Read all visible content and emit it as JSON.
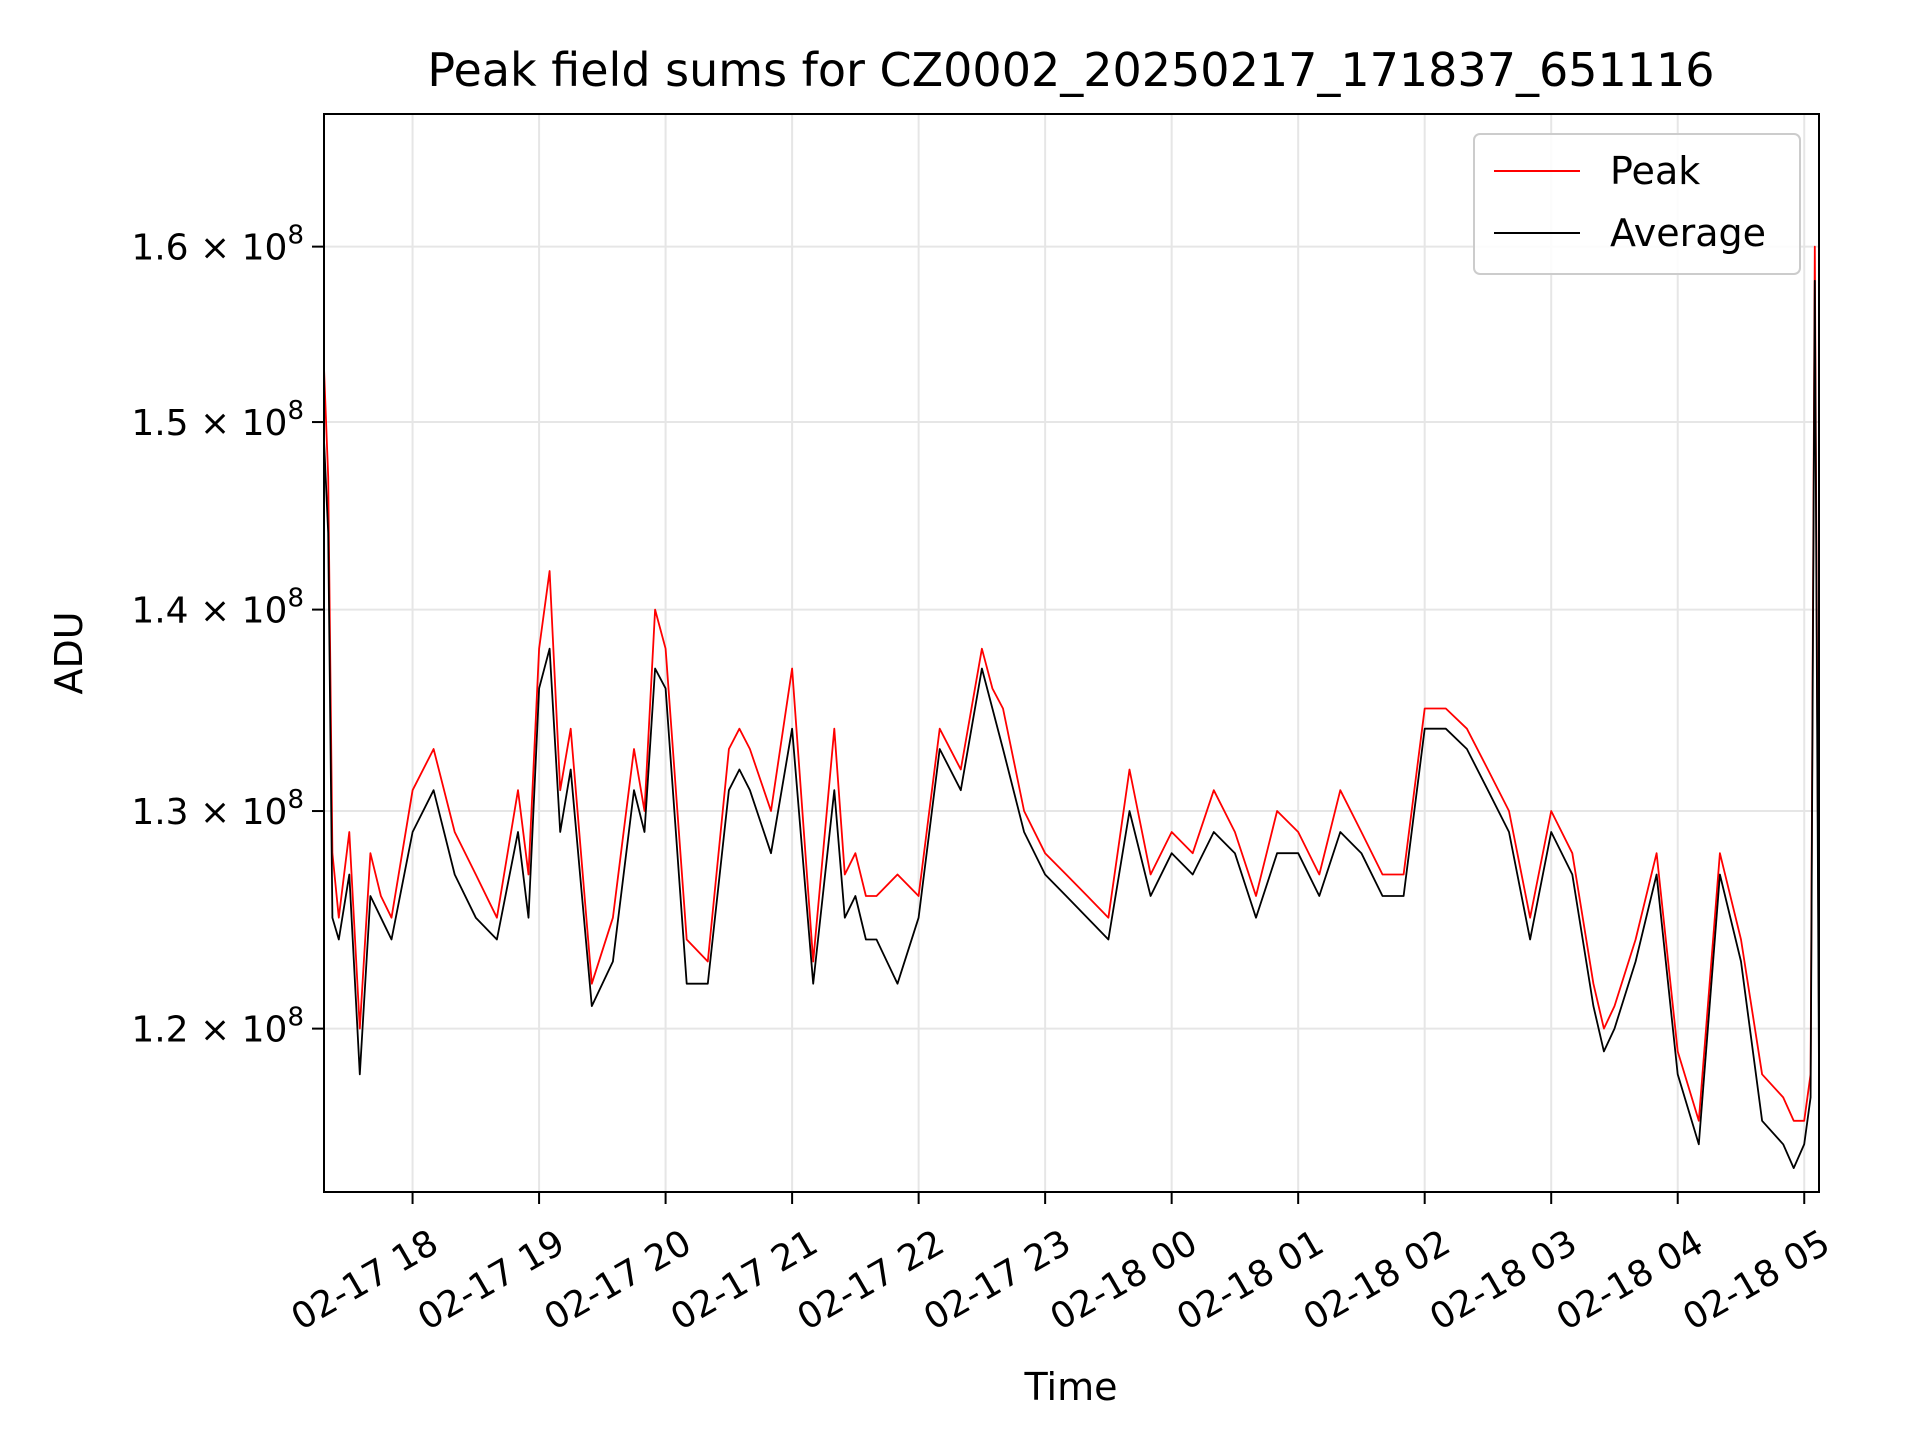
{
  "chart_data": {
    "type": "line",
    "title": "Peak field sums for CZ0002_20250217_171837_651116",
    "xlabel": "Time",
    "ylabel": "ADU",
    "y_scale": "log",
    "ylim": [
      113000000.0,
      168000000.0
    ],
    "xlim": [
      "2025-02-17 17:18",
      "2025-02-18 05:07"
    ],
    "grid": true,
    "legend_position": "top-right",
    "x_ticks": [
      "02-17 18",
      "02-17 19",
      "02-17 20",
      "02-17 21",
      "02-17 22",
      "02-17 23",
      "02-18 00",
      "02-18 01",
      "02-18 02",
      "02-18 03",
      "02-18 04",
      "02-18 05"
    ],
    "y_ticks": [
      {
        "value": 120000000.0,
        "mantissa": "1.2",
        "base": "10",
        "exp": "8"
      },
      {
        "value": 130000000.0,
        "mantissa": "1.3",
        "base": "10",
        "exp": "8"
      },
      {
        "value": 140000000.0,
        "mantissa": "1.4",
        "base": "10",
        "exp": "8"
      },
      {
        "value": 150000000.0,
        "mantissa": "1.5",
        "base": "10",
        "exp": "8"
      },
      {
        "value": 160000000.0,
        "mantissa": "1.6",
        "base": "10",
        "exp": "8"
      }
    ],
    "colors": {
      "peak": "#ff0000",
      "average": "#000000",
      "grid": "#e6e6e6",
      "legend_border": "#cccccc"
    },
    "series": [
      {
        "name": "Peak",
        "x": [
          "2025-02-17 17:18",
          "2025-02-17 17:20",
          "2025-02-17 17:22",
          "2025-02-17 17:25",
          "2025-02-17 17:30",
          "2025-02-17 17:35",
          "2025-02-17 17:40",
          "2025-02-17 17:45",
          "2025-02-17 17:50",
          "2025-02-17 18:00",
          "2025-02-17 18:10",
          "2025-02-17 18:20",
          "2025-02-17 18:30",
          "2025-02-17 18:40",
          "2025-02-17 18:50",
          "2025-02-17 18:55",
          "2025-02-17 19:00",
          "2025-02-17 19:05",
          "2025-02-17 19:10",
          "2025-02-17 19:15",
          "2025-02-17 19:25",
          "2025-02-17 19:35",
          "2025-02-17 19:45",
          "2025-02-17 19:50",
          "2025-02-17 19:55",
          "2025-02-17 20:00",
          "2025-02-17 20:10",
          "2025-02-17 20:20",
          "2025-02-17 20:30",
          "2025-02-17 20:35",
          "2025-02-17 20:40",
          "2025-02-17 20:50",
          "2025-02-17 21:00",
          "2025-02-17 21:10",
          "2025-02-17 21:20",
          "2025-02-17 21:25",
          "2025-02-17 21:30",
          "2025-02-17 21:35",
          "2025-02-17 21:40",
          "2025-02-17 21:50",
          "2025-02-17 22:00",
          "2025-02-17 22:10",
          "2025-02-17 22:20",
          "2025-02-17 22:30",
          "2025-02-17 22:35",
          "2025-02-17 22:40",
          "2025-02-17 22:50",
          "2025-02-17 23:00",
          "2025-02-17 23:10",
          "2025-02-17 23:20",
          "2025-02-17 23:30",
          "2025-02-17 23:40",
          "2025-02-17 23:50",
          "2025-02-18 00:00",
          "2025-02-18 00:10",
          "2025-02-18 00:20",
          "2025-02-18 00:30",
          "2025-02-18 00:40",
          "2025-02-18 00:50",
          "2025-02-18 01:00",
          "2025-02-18 01:10",
          "2025-02-18 01:20",
          "2025-02-18 01:30",
          "2025-02-18 01:40",
          "2025-02-18 01:50",
          "2025-02-18 02:00",
          "2025-02-18 02:10",
          "2025-02-18 02:20",
          "2025-02-18 02:30",
          "2025-02-18 02:40",
          "2025-02-18 02:50",
          "2025-02-18 03:00",
          "2025-02-18 03:10",
          "2025-02-18 03:20",
          "2025-02-18 03:25",
          "2025-02-18 03:30",
          "2025-02-18 03:40",
          "2025-02-18 03:50",
          "2025-02-18 04:00",
          "2025-02-18 04:10",
          "2025-02-18 04:20",
          "2025-02-18 04:30",
          "2025-02-18 04:40",
          "2025-02-18 04:50",
          "2025-02-18 04:55",
          "2025-02-18 05:00",
          "2025-02-18 05:03",
          "2025-02-18 05:05",
          "2025-02-18 05:07"
        ],
        "y": [
          153000000.0,
          147000000.0,
          128000000.0,
          125000000.0,
          129000000.0,
          120000000.0,
          128000000.0,
          126000000.0,
          125000000.0,
          131000000.0,
          133000000.0,
          129000000.0,
          127000000.0,
          125000000.0,
          131000000.0,
          127000000.0,
          138000000.0,
          142000000.0,
          131000000.0,
          134000000.0,
          122000000.0,
          125000000.0,
          133000000.0,
          130000000.0,
          140000000.0,
          138000000.0,
          124000000.0,
          123000000.0,
          133000000.0,
          134000000.0,
          133000000.0,
          130000000.0,
          137000000.0,
          123000000.0,
          134000000.0,
          127000000.0,
          128000000.0,
          126000000.0,
          126000000.0,
          127000000.0,
          126000000.0,
          134000000.0,
          132000000.0,
          138000000.0,
          136000000.0,
          135000000.0,
          130000000.0,
          128000000.0,
          127000000.0,
          126000000.0,
          125000000.0,
          132000000.0,
          127000000.0,
          129000000.0,
          128000000.0,
          131000000.0,
          129000000.0,
          126000000.0,
          130000000.0,
          129000000.0,
          127000000.0,
          131000000.0,
          129000000.0,
          127000000.0,
          127000000.0,
          135000000.0,
          135000000.0,
          134000000.0,
          132000000.0,
          130000000.0,
          125000000.0,
          130000000.0,
          128000000.0,
          122000000.0,
          120000000.0,
          121000000.0,
          124000000.0,
          128000000.0,
          119000000.0,
          116000000.0,
          128000000.0,
          124000000.0,
          118000000.0,
          117000000.0,
          116000000.0,
          116000000.0,
          118000000.0,
          160000000.0,
          120000000.0
        ]
      },
      {
        "name": "Average",
        "x": [
          "2025-02-17 17:18",
          "2025-02-17 17:20",
          "2025-02-17 17:22",
          "2025-02-17 17:25",
          "2025-02-17 17:30",
          "2025-02-17 17:35",
          "2025-02-17 17:40",
          "2025-02-17 17:45",
          "2025-02-17 17:50",
          "2025-02-17 18:00",
          "2025-02-17 18:10",
          "2025-02-17 18:20",
          "2025-02-17 18:30",
          "2025-02-17 18:40",
          "2025-02-17 18:50",
          "2025-02-17 18:55",
          "2025-02-17 19:00",
          "2025-02-17 19:05",
          "2025-02-17 19:10",
          "2025-02-17 19:15",
          "2025-02-17 19:25",
          "2025-02-17 19:35",
          "2025-02-17 19:45",
          "2025-02-17 19:50",
          "2025-02-17 19:55",
          "2025-02-17 20:00",
          "2025-02-17 20:10",
          "2025-02-17 20:20",
          "2025-02-17 20:30",
          "2025-02-17 20:35",
          "2025-02-17 20:40",
          "2025-02-17 20:50",
          "2025-02-17 21:00",
          "2025-02-17 21:10",
          "2025-02-17 21:20",
          "2025-02-17 21:25",
          "2025-02-17 21:30",
          "2025-02-17 21:35",
          "2025-02-17 21:40",
          "2025-02-17 21:50",
          "2025-02-17 22:00",
          "2025-02-17 22:10",
          "2025-02-17 22:20",
          "2025-02-17 22:30",
          "2025-02-17 22:35",
          "2025-02-17 22:40",
          "2025-02-17 22:50",
          "2025-02-17 23:00",
          "2025-02-17 23:10",
          "2025-02-17 23:20",
          "2025-02-17 23:30",
          "2025-02-17 23:40",
          "2025-02-17 23:50",
          "2025-02-18 00:00",
          "2025-02-18 00:10",
          "2025-02-18 00:20",
          "2025-02-18 00:30",
          "2025-02-18 00:40",
          "2025-02-18 00:50",
          "2025-02-18 01:00",
          "2025-02-18 01:10",
          "2025-02-18 01:20",
          "2025-02-18 01:30",
          "2025-02-18 01:40",
          "2025-02-18 01:50",
          "2025-02-18 02:00",
          "2025-02-18 02:10",
          "2025-02-18 02:20",
          "2025-02-18 02:30",
          "2025-02-18 02:40",
          "2025-02-18 02:50",
          "2025-02-18 03:00",
          "2025-02-18 03:10",
          "2025-02-18 03:20",
          "2025-02-18 03:25",
          "2025-02-18 03:30",
          "2025-02-18 03:40",
          "2025-02-18 03:50",
          "2025-02-18 04:00",
          "2025-02-18 04:10",
          "2025-02-18 04:20",
          "2025-02-18 04:30",
          "2025-02-18 04:40",
          "2025-02-18 04:50",
          "2025-02-18 04:55",
          "2025-02-18 05:00",
          "2025-02-18 05:03",
          "2025-02-18 05:05",
          "2025-02-18 05:07"
        ],
        "y": [
          149000000.0,
          144000000.0,
          125000000.0,
          124000000.0,
          127000000.0,
          118000000.0,
          126000000.0,
          125000000.0,
          124000000.0,
          129000000.0,
          131000000.0,
          127000000.0,
          125000000.0,
          124000000.0,
          129000000.0,
          125000000.0,
          136000000.0,
          138000000.0,
          129000000.0,
          132000000.0,
          121000000.0,
          123000000.0,
          131000000.0,
          129000000.0,
          137000000.0,
          136000000.0,
          122000000.0,
          122000000.0,
          131000000.0,
          132000000.0,
          131000000.0,
          128000000.0,
          134000000.0,
          122000000.0,
          131000000.0,
          125000000.0,
          126000000.0,
          124000000.0,
          124000000.0,
          122000000.0,
          125000000.0,
          133000000.0,
          131000000.0,
          137000000.0,
          135000000.0,
          133000000.0,
          129000000.0,
          127000000.0,
          126000000.0,
          125000000.0,
          124000000.0,
          130000000.0,
          126000000.0,
          128000000.0,
          127000000.0,
          129000000.0,
          128000000.0,
          125000000.0,
          128000000.0,
          128000000.0,
          126000000.0,
          129000000.0,
          128000000.0,
          126000000.0,
          126000000.0,
          134000000.0,
          134000000.0,
          133000000.0,
          131000000.0,
          129000000.0,
          124000000.0,
          129000000.0,
          127000000.0,
          121000000.0,
          119000000.0,
          120000000.0,
          123000000.0,
          127000000.0,
          118000000.0,
          115000000.0,
          127000000.0,
          123000000.0,
          116000000.0,
          115000000.0,
          114000000.0,
          115000000.0,
          117000000.0,
          158000000.0,
          118000000.0
        ]
      }
    ]
  }
}
